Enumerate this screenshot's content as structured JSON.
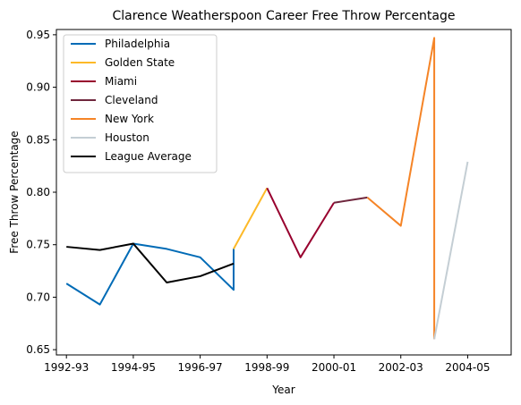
{
  "chart_data": {
    "type": "line",
    "title": "Clarence Weatherspoon Career Free Throw Percentage",
    "xlabel": "Year",
    "ylabel": "Free Throw Percentage",
    "x_ticks": [
      "1992-93",
      "1994-95",
      "1996-97",
      "1998-99",
      "2000-01",
      "2002-03",
      "2004-05"
    ],
    "y_ticks": [
      "0.65",
      "0.70",
      "0.75",
      "0.80",
      "0.85",
      "0.90",
      "0.95"
    ],
    "xlim": [
      1991.7,
      2005.3
    ],
    "ylim": [
      0.645,
      0.955
    ],
    "grid": false,
    "legend_position": "upper-left",
    "series": [
      {
        "name": "Philadelphia",
        "color": "#006bb6",
        "points": [
          [
            1992,
            0.713
          ],
          [
            1993,
            0.693
          ],
          [
            1994,
            0.751
          ],
          [
            1995,
            0.746
          ],
          [
            1996,
            0.738
          ],
          [
            1997,
            0.707
          ],
          [
            1997,
            0.746
          ]
        ]
      },
      {
        "name": "Golden State",
        "color": "#fdb927",
        "points": [
          [
            1997,
            0.746
          ],
          [
            1998,
            0.804
          ]
        ]
      },
      {
        "name": "Miami",
        "color": "#98002e",
        "points": [
          [
            1998,
            0.804
          ],
          [
            1999,
            0.738
          ],
          [
            2000,
            0.79
          ]
        ]
      },
      {
        "name": "Cleveland",
        "color": "#6f263d",
        "points": [
          [
            2000,
            0.79
          ],
          [
            2001,
            0.795
          ]
        ]
      },
      {
        "name": "New York",
        "color": "#f58426",
        "points": [
          [
            2001,
            0.795
          ],
          [
            2002,
            0.768
          ],
          [
            2003,
            0.947
          ],
          [
            2003,
            0.66
          ]
        ]
      },
      {
        "name": "Houston",
        "color": "#c4ced4",
        "points": [
          [
            2003,
            0.66
          ],
          [
            2004,
            0.829
          ]
        ]
      },
      {
        "name": "League Average",
        "color": "#000000",
        "points": [
          [
            1992,
            0.748
          ],
          [
            1993,
            0.745
          ],
          [
            1994,
            0.751
          ],
          [
            1995,
            0.714
          ],
          [
            1996,
            0.72
          ],
          [
            1997,
            0.732
          ]
        ]
      }
    ]
  }
}
